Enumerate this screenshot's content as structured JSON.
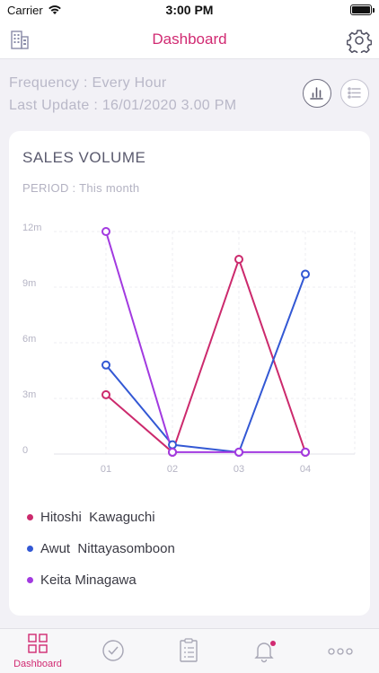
{
  "status_bar": {
    "carrier": "Carrier",
    "time": "3:00 PM"
  },
  "nav": {
    "title": "Dashboard"
  },
  "info": {
    "frequency": "Frequency : Every Hour",
    "last_update": "Last Update : 16/01/2020 3.00 PM"
  },
  "card": {
    "title": "SALES VOLUME",
    "period": "PERIOD : This month"
  },
  "chart_data": {
    "type": "line",
    "title": "SALES VOLUME",
    "categories": [
      "01",
      "02",
      "03",
      "04"
    ],
    "y_ticks": [
      {
        "value": 0,
        "label": "0"
      },
      {
        "value": 3,
        "label": "3m"
      },
      {
        "value": 6,
        "label": "6m"
      },
      {
        "value": 9,
        "label": "9m"
      },
      {
        "value": 12,
        "label": "12m"
      }
    ],
    "ylim": [
      0,
      12
    ],
    "grid": true,
    "legend_position": "bottom",
    "series": [
      {
        "name": "Hitoshi  Kawaguchi",
        "color": "#cc2a6d",
        "values": [
          3.2,
          0.1,
          10.5,
          0.1
        ]
      },
      {
        "name": "Awut  Nittayasomboon",
        "color": "#3358d4",
        "values": [
          4.8,
          0.5,
          0.1,
          9.7
        ]
      },
      {
        "name": "Keita Minagawa",
        "color": "#a23ae0",
        "values": [
          12.0,
          0.1,
          0.1,
          0.1
        ]
      }
    ]
  },
  "tabs": [
    {
      "id": "dashboard",
      "label": "Dashboard",
      "icon": "grid-icon",
      "active": true
    },
    {
      "id": "tasks",
      "label": "",
      "icon": "check-circle-icon",
      "active": false
    },
    {
      "id": "reports",
      "label": "",
      "icon": "clipboard-list-icon",
      "active": false
    },
    {
      "id": "notifications",
      "label": "",
      "icon": "bell-icon",
      "active": false,
      "badge": true
    },
    {
      "id": "more",
      "label": "",
      "icon": "more-icon",
      "active": false
    }
  ]
}
